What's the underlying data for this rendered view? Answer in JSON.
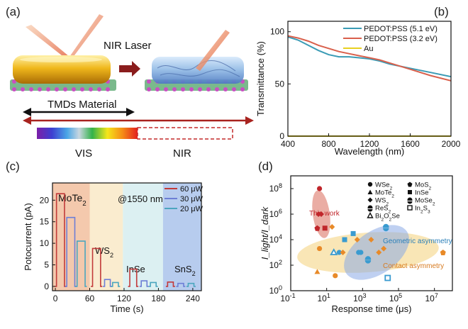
{
  "panels": {
    "a": {
      "label": "(a)",
      "nir_laser": "NIR Laser",
      "tmds_material": "TMDs Material",
      "vis": "VIS",
      "nir": "NIR"
    }
  },
  "chart_data": [
    {
      "panel": "(b)",
      "type": "line",
      "xlabel": "Wavelength (nm)",
      "ylabel": "Transmittance (%)",
      "xlim": [
        400,
        2000
      ],
      "ylim": [
        0,
        110
      ],
      "xticks": [
        400,
        800,
        1200,
        1600,
        2000
      ],
      "yticks": [
        0,
        50,
        100
      ],
      "legend_position": "top-right",
      "series": [
        {
          "name": "PEDOT:PSS (5.1 eV)",
          "color": "#3a9bb5",
          "x": [
            400,
            500,
            600,
            700,
            800,
            900,
            1000,
            1100,
            1200,
            1300,
            1400,
            1600,
            1800,
            2000
          ],
          "y": [
            95,
            92,
            87,
            82,
            78,
            76,
            76,
            75,
            74,
            72,
            69,
            65,
            61,
            57
          ]
        },
        {
          "name": "PEDOT:PSS (3.2 eV)",
          "color": "#d9604c",
          "x": [
            400,
            500,
            600,
            700,
            800,
            900,
            1000,
            1100,
            1200,
            1300,
            1400,
            1600,
            1800,
            2000
          ],
          "y": [
            96,
            94,
            91,
            87,
            84,
            81,
            79,
            77,
            75,
            73,
            70,
            64,
            58,
            53
          ]
        },
        {
          "name": "Au",
          "color": "#e8d020",
          "x": [
            400,
            2000
          ],
          "y": [
            0,
            0
          ]
        }
      ]
    },
    {
      "panel": "(c)",
      "type": "line",
      "xlabel": "Time (s)",
      "ylabel": "Potocurrent (pA)",
      "xlim": [
        -5,
        255
      ],
      "ylim": [
        -1,
        24
      ],
      "xticks": [
        0,
        60,
        120,
        180,
        240
      ],
      "yticks": [
        0,
        5,
        10,
        15,
        20
      ],
      "annotation": "@1550 nm",
      "legend_position": "top-right",
      "regions": [
        {
          "label": "MoTe2",
          "x": [
            -5,
            60
          ],
          "color": "#f4c9ad"
        },
        {
          "label": "WS2",
          "x": [
            60,
            118
          ],
          "color": "#faeccf"
        },
        {
          "label": "InSe",
          "x": [
            118,
            188
          ],
          "color": "#dcf0f2"
        },
        {
          "label": "SnS2",
          "x": [
            188,
            255
          ],
          "color": "#b7ccee"
        }
      ],
      "region_labels": {
        "MoTe2": "MoTe₂",
        "WS2": "WS₂",
        "InSe": "InSe",
        "SnS2": "SnS₂"
      },
      "series": [
        {
          "name": "60 μW",
          "color": "#c23a3a",
          "pulses": [
            {
              "start": 2,
              "width": 14,
              "height": 21.5
            },
            {
              "start": 65,
              "width": 14,
              "height": 8.8
            },
            {
              "start": 130,
              "width": 12,
              "height": 4
            },
            {
              "start": 196,
              "width": 10,
              "height": 1
            }
          ]
        },
        {
          "name": "30 μW",
          "color": "#6d7fd6",
          "pulses": [
            {
              "start": 20,
              "width": 14,
              "height": 16
            },
            {
              "start": 86,
              "width": 10,
              "height": 1.6
            },
            {
              "start": 150,
              "width": 10,
              "height": 1.3
            },
            {
              "start": 214,
              "width": 10,
              "height": 0.7
            }
          ]
        },
        {
          "name": "20 μW",
          "color": "#4ba6bf",
          "pulses": [
            {
              "start": 38,
              "width": 14,
              "height": 10.5
            },
            {
              "start": 100,
              "width": 10,
              "height": 0.9
            },
            {
              "start": 166,
              "width": 10,
              "height": 0.9
            },
            {
              "start": 232,
              "width": 10,
              "height": 0.7
            }
          ]
        }
      ]
    },
    {
      "panel": "(d)",
      "type": "scatter",
      "xlabel": "Response time (μs)",
      "ylabel": "I_light/I_dark",
      "xscale": "log",
      "yscale": "log",
      "xlim_exp": [
        -1,
        8
      ],
      "ylim_exp": [
        0,
        9
      ],
      "xticks_exp": [
        -1,
        1,
        3,
        5,
        7
      ],
      "yticks_exp": [
        0,
        2,
        4,
        6,
        8
      ],
      "legend_position": "top-right",
      "legend": [
        "WSe₂",
        "MoS₂",
        "MoTe₂",
        "InSe",
        "WS₂",
        "MoSe₂",
        "ReS₂",
        "In₂S₃",
        "Bi₂O₂Se"
      ],
      "annotations": [
        "This work",
        "Geometric asymmetry",
        "Contact asymmetry"
      ],
      "points": [
        {
          "x": 4,
          "y": 100000000,
          "m": "WSe2",
          "g": "this"
        },
        {
          "x": 3.5,
          "y": 1000000,
          "m": "WS2",
          "g": "this"
        },
        {
          "x": 5,
          "y": 1000000,
          "m": "WS2",
          "g": "this"
        },
        {
          "x": 3,
          "y": 80000,
          "m": "MoS2",
          "g": "this"
        },
        {
          "x": 8,
          "y": 80000,
          "m": "InSe",
          "g": "this"
        },
        {
          "x": 3,
          "y": 30,
          "m": "MoTe2",
          "g": "contact"
        },
        {
          "x": 4,
          "y": 2000,
          "m": "WSe2",
          "g": "contact"
        },
        {
          "x": 20,
          "y": 100000,
          "m": "WS2",
          "g": "contact"
        },
        {
          "x": 25,
          "y": 1000,
          "m": "Bi2O2Se",
          "g": "geometric"
        },
        {
          "x": 50,
          "y": 1000,
          "m": "WSe2",
          "g": "geometric"
        },
        {
          "x": 80,
          "y": 1000,
          "m": "WS2",
          "g": "contact"
        },
        {
          "x": 30,
          "y": 15,
          "m": "WSe2",
          "g": "contact"
        },
        {
          "x": 100,
          "y": 10000,
          "m": "InSe",
          "g": "geometric"
        },
        {
          "x": 300,
          "y": 30000,
          "m": "InSe",
          "g": "geometric"
        },
        {
          "x": 600,
          "y": 1000,
          "m": "WSe2",
          "g": "geometric"
        },
        {
          "x": 800,
          "y": 1000,
          "m": "WSe2",
          "g": "geometric"
        },
        {
          "x": 500,
          "y": 10000,
          "m": "WS2",
          "g": "contact"
        },
        {
          "x": 2000,
          "y": 300,
          "m": "MoSe2",
          "g": "geometric"
        },
        {
          "x": 3000,
          "y": 10000,
          "m": "WS2",
          "g": "contact"
        },
        {
          "x": 8000,
          "y": 1000,
          "m": "WS2",
          "g": "contact"
        },
        {
          "x": 20000,
          "y": 100000,
          "m": "MoSe2",
          "g": "geometric"
        },
        {
          "x": 25000,
          "y": 10,
          "m": "In2S3",
          "g": "geometric"
        },
        {
          "x": 15000,
          "y": 2000,
          "m": "WS2",
          "g": "contact"
        },
        {
          "x": 30000000,
          "y": 1000,
          "m": "MoS2",
          "g": "contact"
        }
      ]
    }
  ]
}
